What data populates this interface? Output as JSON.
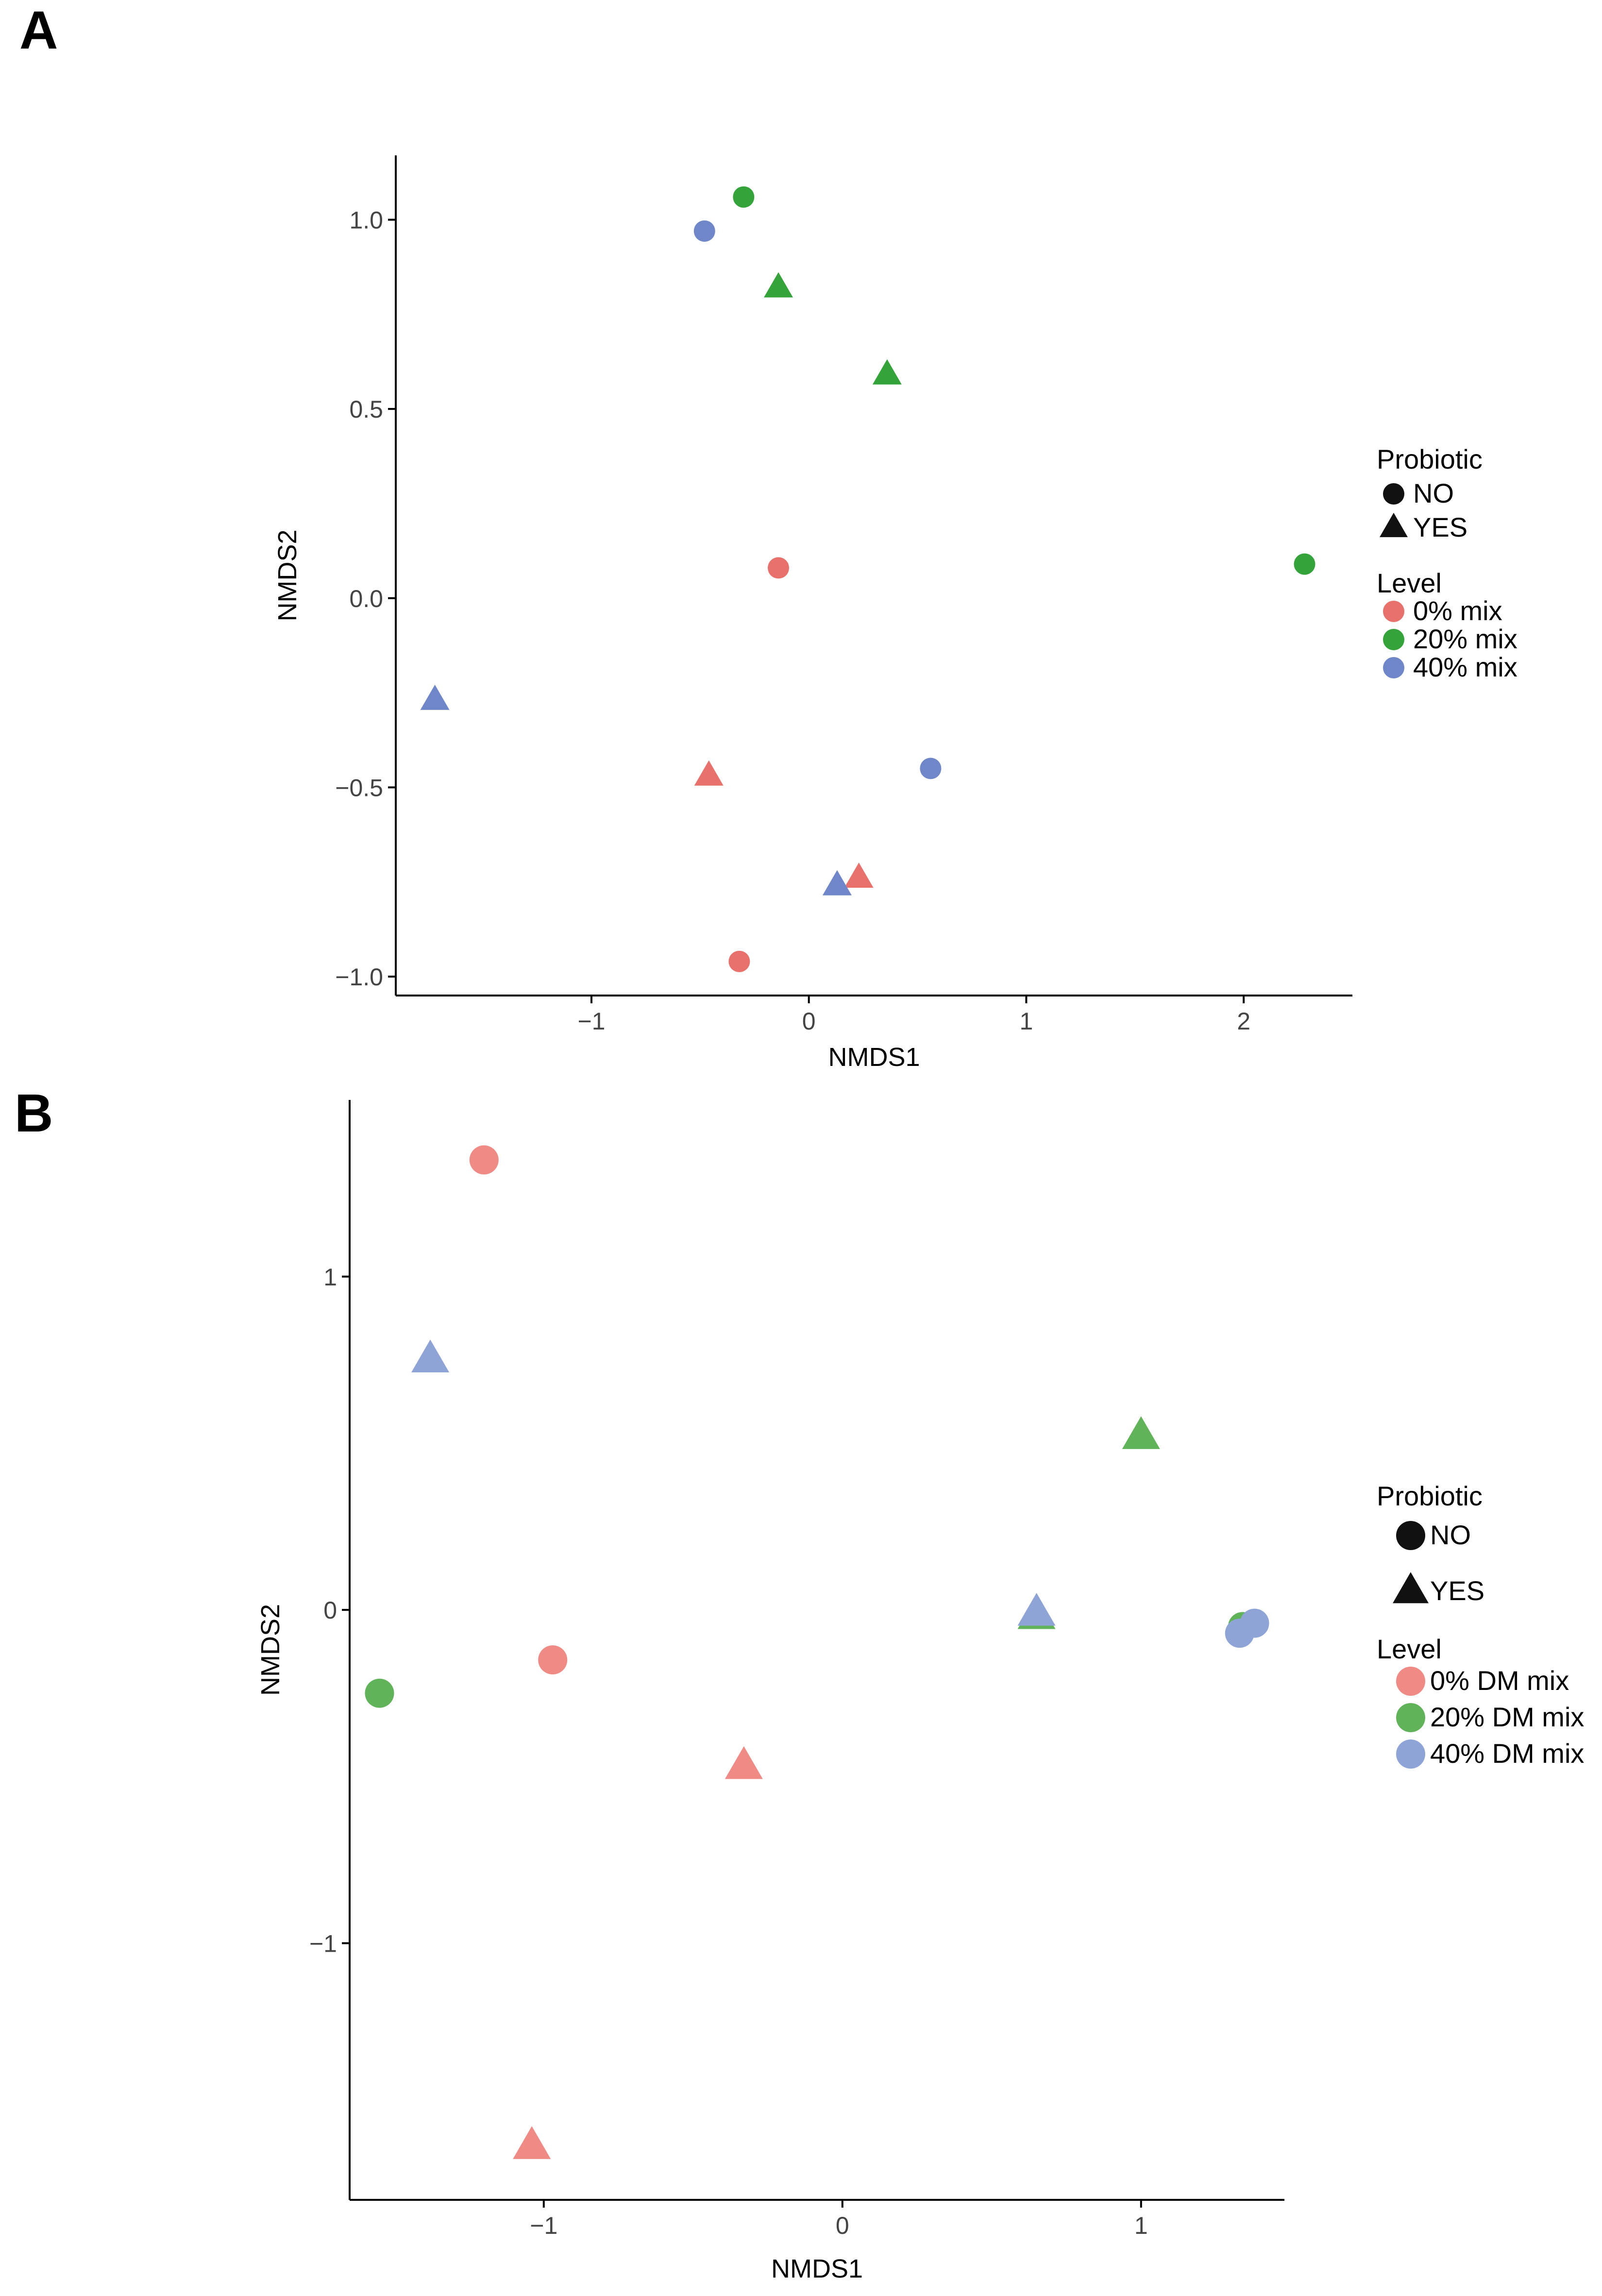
{
  "panels": {
    "a": {
      "label": "A"
    },
    "b": {
      "label": "B"
    }
  },
  "colors": {
    "a_level": {
      "0% mix": "#e8716c",
      "20% mix": "#34a33a",
      "40% mix": "#6f87c9"
    },
    "b_level": {
      "0% DM mix": "#ef8a85",
      "20% DM mix": "#61b35a",
      "40% DM mix": "#8ea3d6"
    },
    "legend_shape": "#111111",
    "axis": "#000000",
    "tick_text": "#444444"
  },
  "chart_data": [
    {
      "type": "scatter",
      "panel": "A",
      "xlabel": "NMDS1",
      "ylabel": "NMDS2",
      "xlim": [
        -1.9,
        2.5
      ],
      "ylim": [
        -1.05,
        1.17
      ],
      "xticks": [
        -1,
        0,
        1,
        2
      ],
      "yticks": [
        -1.0,
        -0.5,
        0.0,
        0.5,
        1.0
      ],
      "xtick_labels": [
        "−1",
        "0",
        "1",
        "2"
      ],
      "ytick_labels": [
        "−1.0",
        "−0.5",
        "0.0",
        "0.5",
        "1.0"
      ],
      "grid": false,
      "legend_position": "right",
      "legend": {
        "shape_title": "Probiotic",
        "shapes": [
          {
            "label": "NO",
            "shape": "circle"
          },
          {
            "label": "YES",
            "shape": "triangle"
          }
        ],
        "level_title": "Level",
        "levels": [
          "0% mix",
          "20% mix",
          "40% mix"
        ]
      },
      "points": [
        {
          "x": -0.3,
          "y": 1.06,
          "level": "20% mix",
          "probiotic": "NO"
        },
        {
          "x": -0.48,
          "y": 0.97,
          "level": "40% mix",
          "probiotic": "NO"
        },
        {
          "x": -0.14,
          "y": 0.82,
          "level": "20% mix",
          "probiotic": "YES"
        },
        {
          "x": 0.36,
          "y": 0.59,
          "level": "20% mix",
          "probiotic": "YES"
        },
        {
          "x": 2.28,
          "y": 0.09,
          "level": "20% mix",
          "probiotic": "NO"
        },
        {
          "x": -0.14,
          "y": 0.08,
          "level": "0% mix",
          "probiotic": "NO"
        },
        {
          "x": -1.72,
          "y": -0.27,
          "level": "40% mix",
          "probiotic": "YES"
        },
        {
          "x": -0.46,
          "y": -0.47,
          "level": "0% mix",
          "probiotic": "YES"
        },
        {
          "x": 0.56,
          "y": -0.45,
          "level": "40% mix",
          "probiotic": "NO"
        },
        {
          "x": 0.23,
          "y": -0.74,
          "level": "0% mix",
          "probiotic": "YES"
        },
        {
          "x": 0.13,
          "y": -0.76,
          "level": "40% mix",
          "probiotic": "YES"
        },
        {
          "x": -0.32,
          "y": -0.96,
          "level": "0% mix",
          "probiotic": "NO"
        }
      ]
    },
    {
      "type": "scatter",
      "panel": "B",
      "xlabel": "NMDS1",
      "ylabel": "NMDS2",
      "xlim": [
        -1.65,
        1.48
      ],
      "ylim": [
        -1.77,
        1.53
      ],
      "xticks": [
        -1,
        0,
        1
      ],
      "yticks": [
        -1,
        0,
        1
      ],
      "xtick_labels": [
        "−1",
        "0",
        "1"
      ],
      "ytick_labels": [
        "−1",
        "0",
        "1"
      ],
      "grid": false,
      "legend_position": "right",
      "legend": {
        "shape_title": "Probiotic",
        "shapes": [
          {
            "label": "NO",
            "shape": "circle"
          },
          {
            "label": "YES",
            "shape": "triangle"
          }
        ],
        "level_title": "Level",
        "levels": [
          "0% DM mix",
          "20% DM mix",
          "40% DM mix"
        ]
      },
      "points": [
        {
          "x": -1.2,
          "y": 1.35,
          "level": "0% DM mix",
          "probiotic": "NO"
        },
        {
          "x": -1.38,
          "y": 0.75,
          "level": "40% DM mix",
          "probiotic": "YES"
        },
        {
          "x": 1.0,
          "y": 0.52,
          "level": "20% DM mix",
          "probiotic": "YES"
        },
        {
          "x": 0.65,
          "y": -0.02,
          "level": "20% DM mix",
          "probiotic": "YES"
        },
        {
          "x": 0.65,
          "y": -0.01,
          "level": "40% DM mix",
          "probiotic": "YES"
        },
        {
          "x": 1.34,
          "y": -0.05,
          "level": "20% DM mix",
          "probiotic": "NO"
        },
        {
          "x": 1.38,
          "y": -0.04,
          "level": "40% DM mix",
          "probiotic": "NO"
        },
        {
          "x": 1.33,
          "y": -0.07,
          "level": "40% DM mix",
          "probiotic": "NO"
        },
        {
          "x": -0.97,
          "y": -0.15,
          "level": "0% DM mix",
          "probiotic": "NO"
        },
        {
          "x": -1.55,
          "y": -0.25,
          "level": "20% DM mix",
          "probiotic": "NO"
        },
        {
          "x": -0.33,
          "y": -0.47,
          "level": "0% DM mix",
          "probiotic": "YES"
        },
        {
          "x": -1.04,
          "y": -1.61,
          "level": "0% DM mix",
          "probiotic": "YES"
        }
      ]
    }
  ]
}
